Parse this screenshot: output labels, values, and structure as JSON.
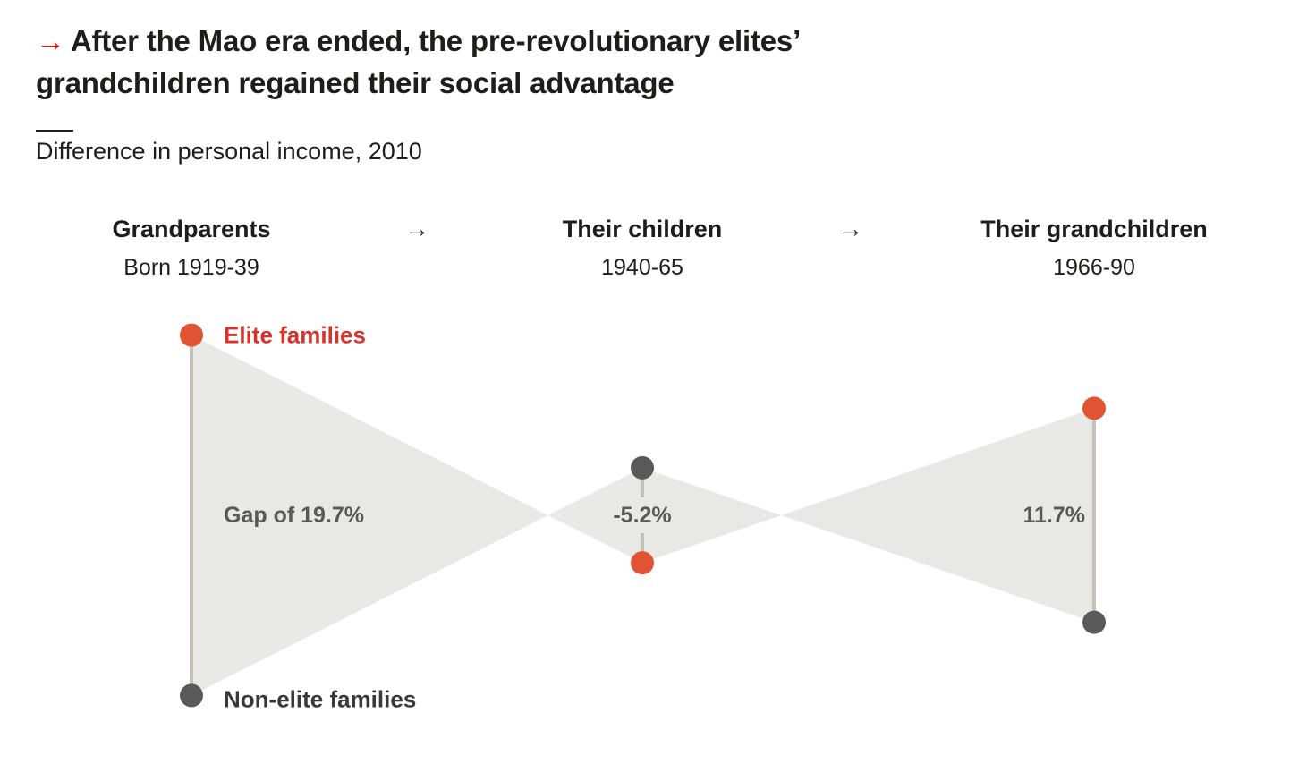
{
  "header": {
    "title": "After the Mao era ended, the pre-revolutionary elites’ grandchildren regained their social advantage",
    "subtitle": "Difference in personal income, 2010",
    "title_arrow_icon": "right-arrow-icon"
  },
  "colors": {
    "elite": "#e05434",
    "non_elite": "#595959",
    "elite_label": "#d7332a",
    "fill": "#e8e8e4",
    "connector": "#c3c1ba",
    "title_arrow": "#e3120b"
  },
  "chart_data": {
    "type": "dumbbell-bowtie",
    "title": "After the Mao era ended, the pre-revolutionary elites’ grandchildren regained their social advantage",
    "subtitle": "Difference in personal income, 2010",
    "unit": "%",
    "generations": [
      {
        "name": "Grandparents",
        "period": "Born 1919-39",
        "gap": 19.7,
        "gap_label": "Gap of 19.7%"
      },
      {
        "name": "Their children",
        "period": "1940-65",
        "gap": -5.2,
        "gap_label": "-5.2%"
      },
      {
        "name": "Their grandchildren",
        "period": "1966-90",
        "gap": 11.7,
        "gap_label": "11.7%"
      }
    ],
    "series": [
      {
        "name": "Elite families",
        "relative_position": [
          9.85,
          -2.6,
          5.85
        ]
      },
      {
        "name": "Non-elite families",
        "relative_position": [
          -9.85,
          2.6,
          -5.85
        ]
      }
    ],
    "legend": [
      "Elite families",
      "Non-elite families"
    ],
    "flow_arrow": "→"
  }
}
